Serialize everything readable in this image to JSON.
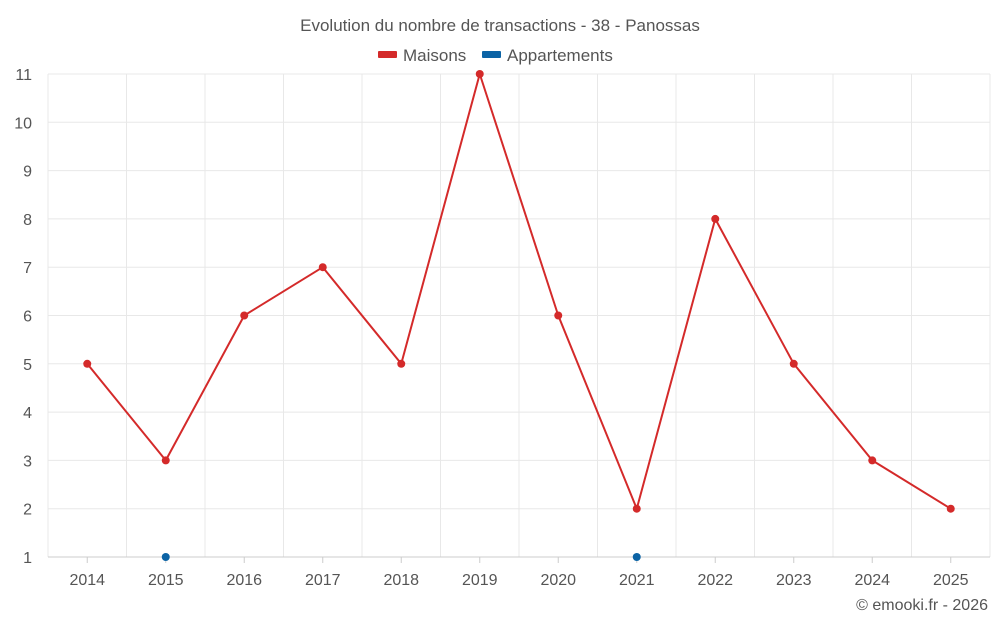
{
  "chart_data": {
    "type": "line",
    "title": "Evolution du nombre de transactions - 38 - Panossas",
    "categories": [
      "2014",
      "2015",
      "2016",
      "2017",
      "2018",
      "2019",
      "2020",
      "2021",
      "2022",
      "2023",
      "2024",
      "2025"
    ],
    "series": [
      {
        "name": "Maisons",
        "color": "#d42a2a",
        "values": [
          5,
          3,
          6,
          7,
          5,
          11,
          6,
          2,
          8,
          5,
          3,
          2
        ]
      },
      {
        "name": "Appartements",
        "color": "#0b63a5",
        "values": [
          null,
          1,
          null,
          null,
          null,
          null,
          null,
          1,
          null,
          null,
          null,
          null
        ]
      }
    ],
    "ylim": [
      1,
      11
    ],
    "yticks": [
      1,
      2,
      3,
      4,
      5,
      6,
      7,
      8,
      9,
      10,
      11
    ],
    "xlabel": "",
    "ylabel": "",
    "grid": true,
    "legend_position": "top-center"
  },
  "credit": "© emooki.fr - 2026"
}
